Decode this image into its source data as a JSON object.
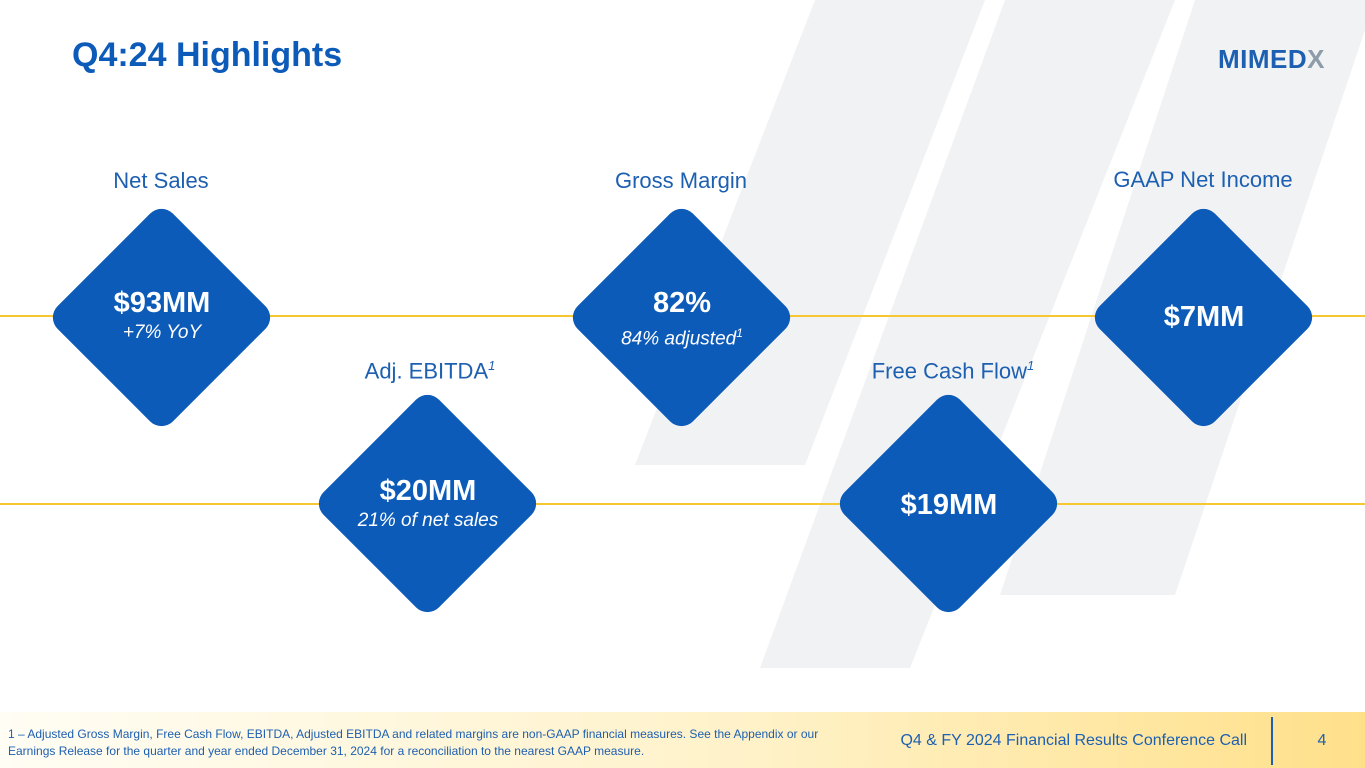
{
  "slide": {
    "title": "Q4:24 Highlights"
  },
  "logo": {
    "main": "MIMED",
    "accent": "X"
  },
  "colors": {
    "brand_blue": "#0D5BB8",
    "accent_yellow": "#F6C731",
    "stripe_gray": "#F1F2F4"
  },
  "metrics": {
    "net_sales": {
      "label": "Net Sales",
      "value": "$93MM",
      "sub": "+7% YoY"
    },
    "gross_margin": {
      "label": "Gross Margin",
      "value": "82%",
      "sub": "84% adjusted",
      "sub_sup": "1"
    },
    "gaap_net_income": {
      "label": "GAAP Net Income",
      "value": "$7MM"
    },
    "adj_ebitda": {
      "label": "Adj. EBITDA",
      "label_sup": "1",
      "value": "$20MM",
      "sub": "21% of net sales"
    },
    "free_cash_flow": {
      "label": "Free Cash Flow",
      "label_sup": "1",
      "value": "$19MM"
    }
  },
  "footer": {
    "footnote": "1 – Adjusted Gross Margin, Free Cash Flow, EBITDA, Adjusted EBITDA and related margins are non-GAAP financial measures. See the Appendix or our Earnings Release for the quarter and year ended December 31, 2024 for a reconciliation to the nearest GAAP measure.",
    "conference": "Q4 & FY 2024 Financial Results Conference Call",
    "page_number": "4"
  }
}
